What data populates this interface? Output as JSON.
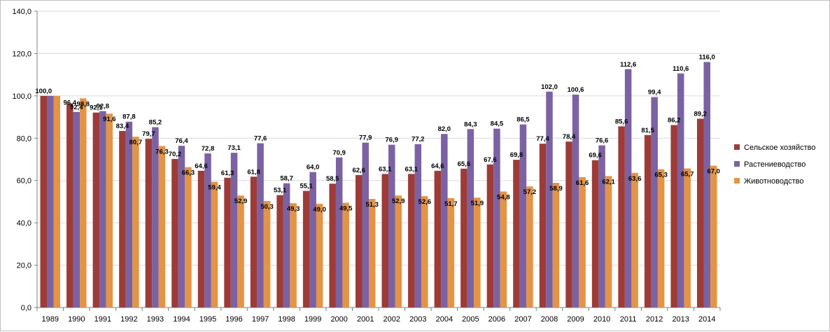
{
  "chart_data": {
    "type": "bar",
    "title": "",
    "xlabel": "",
    "ylabel": "",
    "ylim": [
      0,
      140
    ],
    "yticks": [
      "0,0",
      "20,0",
      "40,0",
      "60,0",
      "80,0",
      "100,0",
      "120,0",
      "140,0"
    ],
    "grid": true,
    "legend_position": "right",
    "categories": [
      "1989",
      "1990",
      "1991",
      "1992",
      "1993",
      "1994",
      "1995",
      "1996",
      "1997",
      "1998",
      "1999",
      "2000",
      "2001",
      "2002",
      "2003",
      "2004",
      "2005",
      "2006",
      "2007",
      "2008",
      "2009",
      "2010",
      "2011",
      "2012",
      "2013",
      "2014"
    ],
    "series": [
      {
        "name": "Сельское хозяйство",
        "color": "#9e3b37",
        "values": [
          100.0,
          96.4,
          92.1,
          83.4,
          79.7,
          70.2,
          64.6,
          61.3,
          61.8,
          53.1,
          55.1,
          58.5,
          62.6,
          63.1,
          63.1,
          64.6,
          65.6,
          67.6,
          69.8,
          77.4,
          78.4,
          69.6,
          85.6,
          81.5,
          86.2,
          89.2
        ],
        "labels": [
          "100,0",
          "96,4",
          "92,1",
          "83,4",
          "79,7",
          "70,2",
          "64,6",
          "61,3",
          "61,8",
          "53,1",
          "55,1",
          "58,5",
          "62,6",
          "63,1",
          "63,1",
          "64,6",
          "65,6",
          "67,6",
          "69,8",
          "77,4",
          "78,4",
          "69,6",
          "85,6",
          "81,5",
          "86,2",
          "89,2"
        ]
      },
      {
        "name": "Растениеводство",
        "color": "#7b62a3",
        "values": [
          100.0,
          92.4,
          92.8,
          87.8,
          85.2,
          76.4,
          72.8,
          73.1,
          77.6,
          58.7,
          64.0,
          70.9,
          77.9,
          76.9,
          77.2,
          82.0,
          84.3,
          84.5,
          86.5,
          102.0,
          100.6,
          76.6,
          112.6,
          99.4,
          110.6,
          116.0
        ],
        "labels": [
          "",
          "92,4",
          "92,8",
          "87,8",
          "85,2",
          "76,4",
          "72,8",
          "73,1",
          "77,6",
          "58,7",
          "64,0",
          "70,9",
          "77,9",
          "76,9",
          "77,2",
          "82,0",
          "84,3",
          "84,5",
          "86,5",
          "102,0",
          "100,6",
          "76,6",
          "112,6",
          "99,4",
          "110,6",
          "116,0"
        ]
      },
      {
        "name": "Животноводство",
        "color": "#e39446",
        "values": [
          100.0,
          98.8,
          91.6,
          80.7,
          76.3,
          66.3,
          59.4,
          52.9,
          50.3,
          49.3,
          49.0,
          49.5,
          51.3,
          52.9,
          52.6,
          51.7,
          51.9,
          54.8,
          57.2,
          58.9,
          61.6,
          62.1,
          63.6,
          65.3,
          65.7,
          67.0
        ],
        "labels": [
          "",
          "98,8",
          "91,6",
          "80,7",
          "76,3",
          "66,3",
          "59,4",
          "52,9",
          "50,3",
          "49,3",
          "49,0",
          "49,5",
          "51,3",
          "52,9",
          "52,6",
          "51,7",
          "51,9",
          "54,8",
          "57,2",
          "58,9",
          "61,6",
          "62,1",
          "63,6",
          "65,3",
          "65,7",
          "67,0"
        ]
      }
    ]
  }
}
